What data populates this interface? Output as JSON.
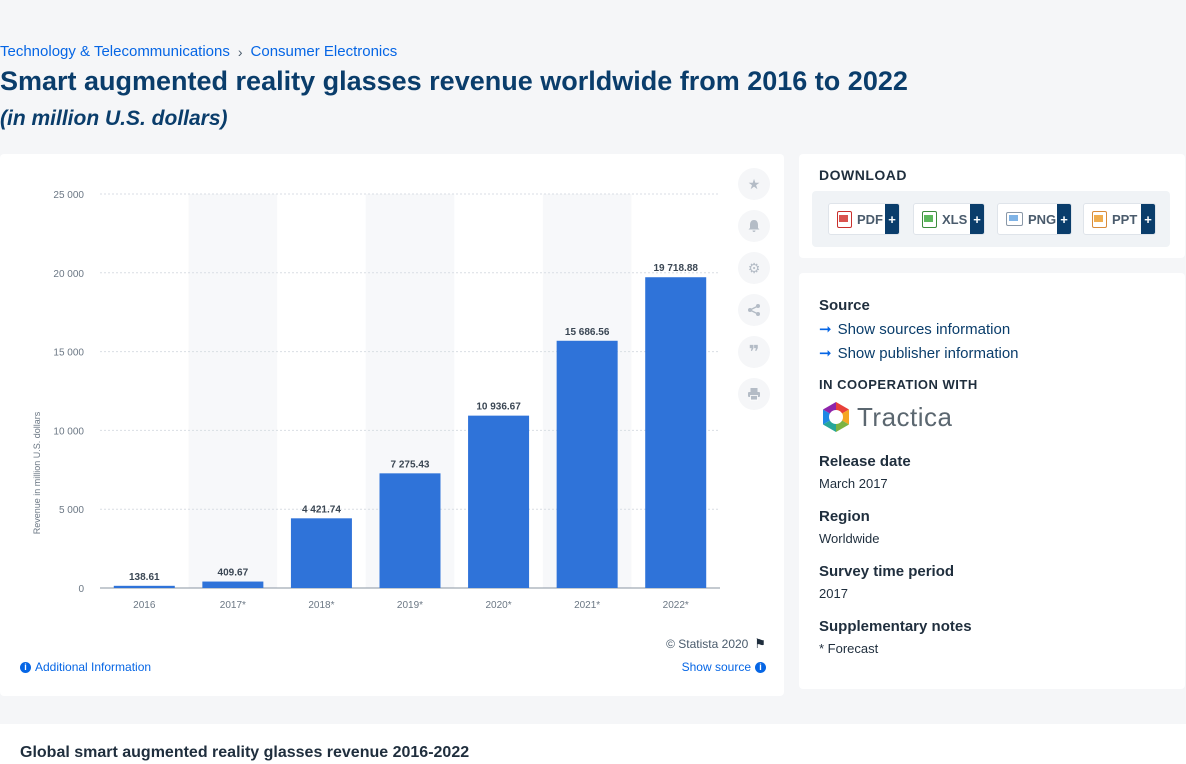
{
  "breadcrumb": [
    "Technology & Telecommunications",
    "Consumer Electronics"
  ],
  "header": {
    "title": "Smart augmented reality glasses revenue worldwide from 2016 to 2022",
    "subtitle": "(in million U.S. dollars)"
  },
  "chart_data": {
    "type": "bar",
    "categories": [
      "2016",
      "2017*",
      "2018*",
      "2019*",
      "2020*",
      "2021*",
      "2022*"
    ],
    "values": [
      138.61,
      409.67,
      4421.74,
      7275.43,
      10936.67,
      15686.56,
      19718.88
    ],
    "value_labels": [
      "138.61",
      "409.67",
      "4 421.74",
      "7 275.43",
      "10 936.67",
      "15 686.56",
      "19 718.88"
    ],
    "ylabel": "Revenue in million U.S. dollars",
    "ylim": [
      0,
      25000
    ],
    "yticks": [
      0,
      5000,
      10000,
      15000,
      20000,
      25000
    ],
    "ytick_labels": [
      "0",
      "5 000",
      "10 000",
      "15 000",
      "20 000",
      "25 000"
    ],
    "grid": true,
    "bar_color": "#2f73d9"
  },
  "chart_footer": {
    "copyright": "© Statista 2020",
    "additional_info": "Additional Information",
    "show_source": "Show source"
  },
  "toolbar_icons": [
    "star-icon",
    "bell-icon",
    "gear-icon",
    "share-icon",
    "quote-icon",
    "print-icon"
  ],
  "download": {
    "heading": "DOWNLOAD",
    "formats": [
      "PDF",
      "XLS",
      "PNG",
      "PPT"
    ],
    "plus": "+"
  },
  "sidebar": {
    "source_heading": "Source",
    "show_sources": "Show sources information",
    "show_publisher": "Show publisher information",
    "cooperation_heading": "IN COOPERATION WITH",
    "logo_text": "Tractica",
    "release_heading": "Release date",
    "release_value": "March 2017",
    "region_heading": "Region",
    "region_value": "Worldwide",
    "survey_heading": "Survey time period",
    "survey_value": "2017",
    "notes_heading": "Supplementary notes",
    "notes_value": "* Forecast"
  },
  "bottom": {
    "title": "Global smart augmented reality glasses revenue 2016-2022"
  }
}
